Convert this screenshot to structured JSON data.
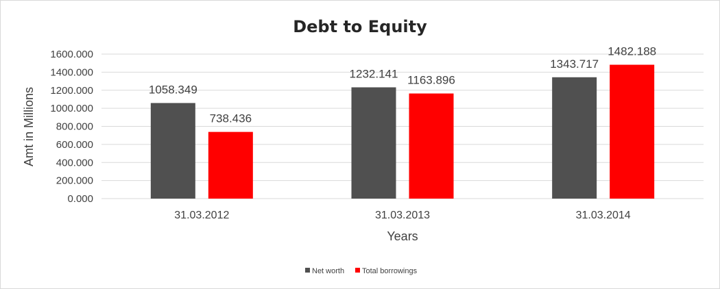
{
  "chart_data": {
    "type": "bar",
    "title": "Debt to Equity",
    "xlabel": "Years",
    "ylabel": "Amt in Millions",
    "categories": [
      "31.03.2012",
      "31.03.2013",
      "31.03.2014"
    ],
    "series": [
      {
        "name": "Net worth",
        "values": [
          1058.349,
          1232.141,
          1343.717
        ],
        "labels": [
          "1058.349",
          "1232.141",
          "1343.717"
        ],
        "color": "#505050"
      },
      {
        "name": "Total borrowings",
        "values": [
          738.436,
          1163.896,
          1482.188
        ],
        "labels": [
          "738.436",
          "1163.896",
          "1482.188"
        ],
        "color": "#ff0000"
      }
    ],
    "ylim": [
      0,
      1600
    ],
    "yticks": [
      0,
      200,
      400,
      600,
      800,
      1000,
      1200,
      1400,
      1600
    ],
    "ytick_labels": [
      "0.000",
      "200.000",
      "400.000",
      "600.000",
      "800.000",
      "1000.000",
      "1200.000",
      "1400.000",
      "1600.000"
    ],
    "grid": true,
    "legend_position": "bottom"
  }
}
